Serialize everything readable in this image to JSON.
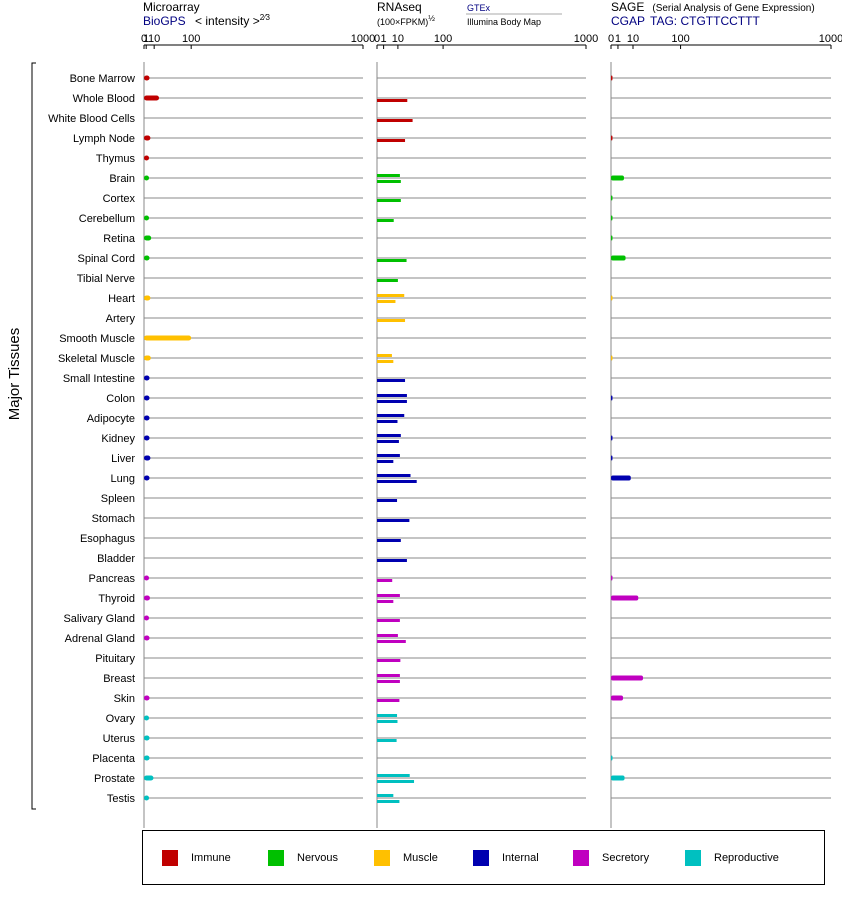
{
  "y_axis_label": "Major Tissues",
  "tissues": [
    "Bone Marrow",
    "Whole Blood",
    "White Blood Cells",
    "Lymph Node",
    "Thymus",
    "Brain",
    "Cortex",
    "Cerebellum",
    "Retina",
    "Spinal Cord",
    "Tibial Nerve",
    "Heart",
    "Artery",
    "Smooth Muscle",
    "Skeletal Muscle",
    "Small Intestine",
    "Colon",
    "Adipocyte",
    "Kidney",
    "Liver",
    "Lung",
    "Spleen",
    "Stomach",
    "Esophagus",
    "Bladder",
    "Pancreas",
    "Thyroid",
    "Salivary Gland",
    "Adrenal Gland",
    "Pituitary",
    "Breast",
    "Skin",
    "Ovary",
    "Uterus",
    "Placenta",
    "Prostate",
    "Testis"
  ],
  "tissue_groups": [
    "Immune",
    "Immune",
    "Immune",
    "Immune",
    "Immune",
    "Nervous",
    "Nervous",
    "Nervous",
    "Nervous",
    "Nervous",
    "Nervous",
    "Muscle",
    "Muscle",
    "Muscle",
    "Muscle",
    "Internal",
    "Internal",
    "Internal",
    "Internal",
    "Internal",
    "Internal",
    "Internal",
    "Internal",
    "Internal",
    "Internal",
    "Secretory",
    "Secretory",
    "Secretory",
    "Secretory",
    "Secretory",
    "Secretory",
    "Secretory",
    "Reproductive",
    "Reproductive",
    "Reproductive",
    "Reproductive",
    "Reproductive"
  ],
  "colors": {
    "Immune": "#c00000",
    "Nervous": "#00c000",
    "Muscle": "#ffc000",
    "Internal": "#0000b0",
    "Secretory": "#c000c0",
    "Reproductive": "#00c0c0"
  },
  "legend": [
    {
      "key": "Immune",
      "label": "Immune"
    },
    {
      "key": "Nervous",
      "label": "Nervous"
    },
    {
      "key": "Muscle",
      "label": "Muscle"
    },
    {
      "key": "Internal",
      "label": "Internal"
    },
    {
      "key": "Secretory",
      "label": "Secretory"
    },
    {
      "key": "Reproductive",
      "label": "Reproductive"
    }
  ],
  "panels": [
    {
      "id": "microarray",
      "title": "Microarray",
      "subtitle_link": "BioGPS",
      "subtitle_text": "< intensity >",
      "subtitle_exponent": "2⁄3",
      "tick_labels": [
        "0",
        "1",
        "10",
        "100",
        "1000"
      ],
      "tick_values": [
        0,
        1,
        10,
        100,
        1000
      ],
      "scale_exponent": 0.6667,
      "xlim": [
        0,
        1000
      ]
    },
    {
      "id": "rnaseq",
      "title": "RNAseq",
      "subtitle_text": "(100×FPKM)",
      "subtitle_exponent": "½",
      "source_gtex": "GTEx",
      "source_illumina": "Illumina Body Map",
      "tick_labels": [
        "0",
        "1",
        "10",
        "100",
        "1000"
      ],
      "tick_values": [
        0,
        1,
        10,
        100,
        1000
      ],
      "scale_exponent": 0.5,
      "xlim": [
        0,
        1000
      ]
    },
    {
      "id": "sage",
      "title": "SAGE",
      "title_note": "(Serial Analysis of Gene Expression)",
      "subtitle_prefix": "CGAP",
      "subtitle_tag": "TAG: CTGTTCCTTT",
      "tick_labels": [
        "0",
        "1",
        "10",
        "100",
        "1000"
      ],
      "tick_values": [
        0,
        1,
        10,
        100,
        1000
      ],
      "scale_exponent": 0.5,
      "xlim": [
        0,
        1000
      ]
    }
  ],
  "chart_data": {
    "type": "bar",
    "categories": [
      "Bone Marrow",
      "Whole Blood",
      "White Blood Cells",
      "Lymph Node",
      "Thymus",
      "Brain",
      "Cortex",
      "Cerebellum",
      "Retina",
      "Spinal Cord",
      "Tibial Nerve",
      "Heart",
      "Artery",
      "Smooth Muscle",
      "Skeletal Muscle",
      "Small Intestine",
      "Colon",
      "Adipocyte",
      "Kidney",
      "Liver",
      "Lung",
      "Spleen",
      "Stomach",
      "Esophagus",
      "Bladder",
      "Pancreas",
      "Thyroid",
      "Salivary Gland",
      "Adrenal Gland",
      "Pituitary",
      "Breast",
      "Skin",
      "Ovary",
      "Uterus",
      "Placenta",
      "Prostate",
      "Testis"
    ],
    "series": [
      {
        "name": "Microarray",
        "values": [
          4,
          18,
          null,
          5,
          3.5,
          3.5,
          null,
          3.5,
          6,
          4,
          null,
          5,
          null,
          100,
          5.5,
          4,
          4,
          4,
          4,
          5,
          4,
          null,
          null,
          null,
          null,
          3.5,
          4.5,
          3.5,
          4,
          null,
          null,
          4,
          3.5,
          4,
          4,
          9,
          3.5
        ]
      },
      {
        "name": "GTEx",
        "values": [
          null,
          21,
          null,
          null,
          null,
          12,
          null,
          null,
          null,
          20,
          null,
          null,
          null,
          null,
          null,
          null,
          null,
          null,
          null,
          null,
          null,
          null,
          null,
          null,
          null,
          null,
          12,
          null,
          null,
          null,
          12,
          12,
          null,
          null,
          null,
          null,
          null
        ]
      },
      {
        "name": "Illumina Body Map",
        "values": [
          null,
          null,
          null,
          null,
          null,
          null,
          null,
          null,
          null,
          null,
          null,
          null,
          null,
          null,
          null,
          null,
          null,
          null,
          null,
          null,
          null,
          null,
          null,
          null,
          null,
          null,
          null,
          null,
          null,
          null,
          null,
          null,
          null,
          null,
          null,
          null,
          null
        ]
      }
    ],
    "rnaseq_bars": [
      [],
      [
        21
      ],
      [
        29
      ],
      [
        18
      ],
      [],
      [
        12,
        13
      ],
      [
        13
      ],
      [
        6.4
      ],
      [],
      [
        20
      ],
      [
        10
      ],
      [
        17,
        7.8
      ],
      [
        18
      ],
      [],
      [
        5.1,
        6.1
      ],
      [
        18
      ],
      [
        20.5,
        20.5
      ],
      [
        17,
        9.6
      ],
      [
        13,
        11
      ],
      [
        12,
        6.1
      ],
      [
        25.7,
        36.1
      ],
      [
        9.2
      ],
      [
        24
      ],
      [
        13
      ],
      [
        20.5
      ],
      [
        5.3
      ],
      [
        12,
        6.1
      ],
      [
        12
      ],
      [
        10,
        19
      ],
      [
        12.5
      ],
      [
        12,
        12
      ],
      [
        11.5
      ],
      [
        9.2,
        9.6
      ],
      [
        8.8
      ],
      [],
      [
        24.5,
        31.4
      ],
      [
        6.1,
        11.5
      ]
    ],
    "sage_bars": [
      [
        0.02
      ],
      [],
      [],
      [
        0.02
      ],
      [],
      [
        3.5
      ],
      [
        0.01
      ],
      [
        0.01
      ],
      [
        0.01
      ],
      [
        4.4
      ],
      [],
      [
        0.005
      ],
      [],
      [],
      [
        0.005
      ],
      [],
      [
        0.02
      ],
      [],
      [
        0.02
      ],
      [
        0.02
      ],
      [
        8.1
      ],
      [],
      [],
      [],
      [],
      [
        0.02
      ],
      [
        15.4
      ],
      [],
      [],
      [],
      [
        21.2
      ],
      [
        3
      ],
      [],
      [],
      [
        0.01
      ],
      [
        3.8
      ],
      []
    ],
    "xlabel": "",
    "ylabel": "Major Tissues",
    "xlim": [
      0,
      1000
    ]
  }
}
